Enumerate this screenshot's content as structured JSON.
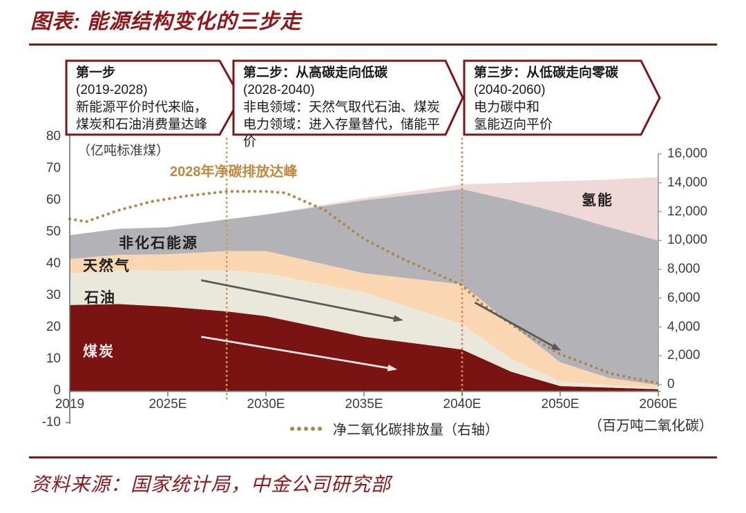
{
  "page": {
    "title": "图表: 能源结构变化的三步走",
    "source": "资料来源：国家统计局，中金公司研究部"
  },
  "colors": {
    "accent_red": "#8F181B",
    "box_border": "#7F1416",
    "axis_gray": "#6f6f6f",
    "right_axis_gray": "#9b9b9b"
  },
  "steps": [
    {
      "title": "第一步",
      "period": "(2019-2028)",
      "lines": [
        "新能源平价时代来临，",
        "煤炭和石油消费量达峰"
      ]
    },
    {
      "title": "第二步：从高碳走向低碳",
      "period": "(2028-2040)",
      "lines": [
        "非电领域：天然气取代石油、煤炭",
        "电力领域：进入存量替代，储能平价"
      ]
    },
    {
      "title": "第三步：从低碳走向零碳",
      "period": "(2040-2060)",
      "lines": [
        "电力碳中和",
        "氢能迈向平价"
      ]
    }
  ],
  "chart_data": {
    "type": "area",
    "title": "能源结构变化的三步走",
    "x_ticks": [
      "2019",
      "2025E",
      "2030E",
      "2035E",
      "2040E",
      "2050E",
      "2060E"
    ],
    "x_tick_years": [
      2019,
      2025,
      2030,
      2035,
      2040,
      2050,
      2060
    ],
    "left_axis": {
      "unit_label": "（亿吨标准煤）",
      "min": -10,
      "max": 80,
      "ticks": [
        "80",
        "70",
        "60",
        "50",
        "40",
        "30",
        "20",
        "10",
        "0",
        "-10"
      ]
    },
    "right_axis": {
      "unit_label": "（百万吨二氧化碳）",
      "min": 0,
      "max": 16000,
      "ticks": [
        "16,000",
        "14,000",
        "12,000",
        "10,000",
        "8,000",
        "6,000",
        "4,000",
        "2,000",
        "0"
      ]
    },
    "years": [
      2019,
      2022,
      2025,
      2028,
      2030,
      2035,
      2040,
      2045,
      2050,
      2055,
      2060
    ],
    "series": [
      {
        "key": "coal",
        "name": "煤炭",
        "color": "#7A1412",
        "values": [
          27,
          27.3,
          26.5,
          25,
          23.5,
          17,
          13,
          6,
          1.5,
          1,
          0.5
        ]
      },
      {
        "key": "oil",
        "name": "石油",
        "color": "#EAE8DB",
        "values": [
          10,
          10.7,
          11.3,
          13,
          13.5,
          14,
          8,
          4,
          1.5,
          0.8,
          0.5
        ]
      },
      {
        "key": "gas",
        "name": "天然气",
        "color": "#FAD7B2",
        "values": [
          4.5,
          4.8,
          5.2,
          6,
          7,
          6,
          12.5,
          11,
          6,
          2.2,
          0.8
        ]
      },
      {
        "key": "non-fossil",
        "name": "非化石能源",
        "color": "#B3B2B6",
        "values": [
          7.5,
          8.2,
          8.5,
          10,
          11.5,
          23,
          30,
          39,
          47,
          47.5,
          45.5
        ]
      },
      {
        "key": "hydrogen",
        "name": "氢能",
        "color": "#EFD9D8",
        "values": [
          0,
          0,
          0,
          0,
          0,
          0.7,
          1.5,
          5.5,
          10,
          15,
          20
        ]
      }
    ],
    "co2_line": {
      "name": "净二氧化碳排放量（右轴）",
      "axis": "right",
      "color": "#AD874A",
      "years": [
        2019,
        2020,
        2022,
        2024,
        2026,
        2028,
        2030,
        2031,
        2033,
        2035,
        2037,
        2040,
        2042,
        2045,
        2047,
        2050,
        2052,
        2055,
        2057,
        2060
      ],
      "values": [
        11500,
        11300,
        12100,
        12700,
        13100,
        13400,
        13400,
        13300,
        12100,
        10100,
        8700,
        6900,
        5600,
        4200,
        3300,
        2100,
        1600,
        800,
        500,
        100
      ]
    },
    "annotation": {
      "text": "2028年净碳排放达峰",
      "color": "#C1873C",
      "year": 2028
    },
    "event_lines": [
      {
        "year": 2028,
        "color": "#C79A62"
      },
      {
        "year": 2040,
        "color": "#CE8B60"
      }
    ],
    "arrows": [
      {
        "from": {
          "year": 2026.7,
          "value": 34.8
        },
        "to": {
          "year": 2037.0,
          "value": 22.2
        },
        "color": "#595959"
      },
      {
        "from": {
          "year": 2026.7,
          "value": 17.0
        },
        "to": {
          "year": 2036.7,
          "value": 6.7
        },
        "color": "#F3E7E6"
      },
      {
        "from": {
          "year": 2041.3,
          "value": 27.8
        },
        "to": {
          "year": 2050.1,
          "value": 12.6
        },
        "color": "#595959"
      }
    ]
  }
}
